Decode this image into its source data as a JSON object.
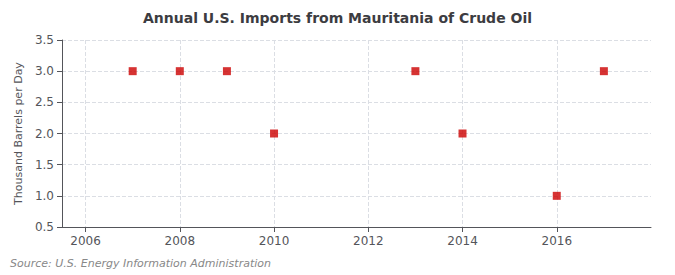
{
  "chart_data": {
    "type": "scatter",
    "title": "Annual U.S. Imports from Mauritania of Crude Oil",
    "ylabel": "Thousand Barrels per Day",
    "source": "Source: U.S. Energy Information Administration",
    "x": [
      2007,
      2008,
      2009,
      2010,
      2013,
      2014,
      2016,
      2017
    ],
    "values": [
      3.0,
      3.0,
      3.0,
      2.0,
      3.0,
      2.0,
      1.0,
      3.0
    ],
    "color": "#cc0000",
    "marker": "square",
    "xlim": [
      2005.5,
      2018.0
    ],
    "xticks": [
      2006,
      2008,
      2010,
      2012,
      2014,
      2016
    ],
    "ylim": [
      0.5,
      3.5
    ],
    "yticks": [
      0.5,
      {
        "value": 1.0,
        "label": "1.0"
      },
      1.5,
      {
        "value": 2.0,
        "label": "2.0"
      },
      2.5,
      {
        "value": 3.0,
        "label": "3.0"
      },
      3.5
    ],
    "grid": true
  }
}
